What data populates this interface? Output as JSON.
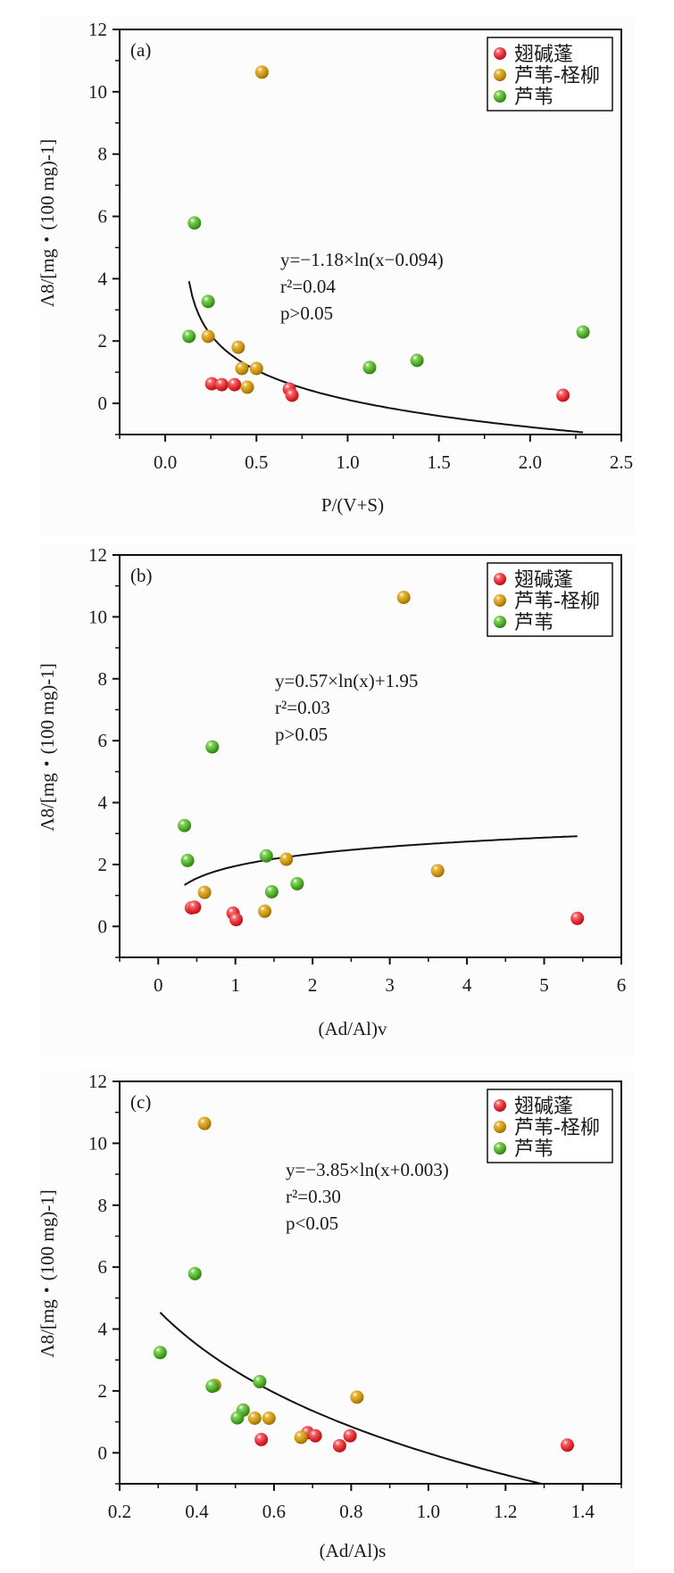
{
  "legend": [
    {
      "name": "翅碱蓬",
      "color": "#e0262e"
    },
    {
      "name": "芦苇-柽柳",
      "color": "#c8920c"
    },
    {
      "name": "芦苇",
      "color": "#4caa25"
    }
  ],
  "chart_data": [
    {
      "type": "scatter",
      "panel_label": "(a)",
      "xlabel": "P/(V+S)",
      "ylabel": "Λ8/[mg・(100 mg)-1]",
      "xlim": [
        -0.25,
        2.5
      ],
      "ylim": [
        -1,
        12
      ],
      "xticks": [
        "0.0",
        "0.5",
        "1.0",
        "1.5",
        "2.0",
        "2.5"
      ],
      "xtick_values": [
        0,
        0.5,
        1.0,
        1.5,
        2.0,
        2.5
      ],
      "yticks": [
        "0",
        "2",
        "4",
        "6",
        "8",
        "10",
        "12"
      ],
      "ytick_values": [
        0,
        2,
        4,
        6,
        8,
        10,
        12
      ],
      "legend_position": "top-right",
      "series": [
        {
          "name": "翅碱蓬",
          "points": [
            [
              0.255,
              0.63
            ],
            [
              0.31,
              0.6
            ],
            [
              0.38,
              0.6
            ],
            [
              0.68,
              0.46
            ],
            [
              0.695,
              0.26
            ],
            [
              2.18,
              0.26
            ]
          ]
        },
        {
          "name": "芦苇-柽柳",
          "points": [
            [
              0.53,
              10.63
            ],
            [
              0.235,
              2.15
            ],
            [
              0.4,
              1.8
            ],
            [
              0.42,
              1.12
            ],
            [
              0.5,
              1.12
            ],
            [
              0.45,
              0.52
            ]
          ]
        },
        {
          "name": "芦苇",
          "points": [
            [
              0.16,
              5.79
            ],
            [
              0.235,
              3.27
            ],
            [
              0.13,
              2.15
            ],
            [
              1.12,
              1.15
            ],
            [
              1.38,
              1.38
            ],
            [
              2.29,
              2.29
            ]
          ]
        }
      ],
      "fit": {
        "a": -1.18,
        "b": 0,
        "shift": -0.094,
        "x_range": [
          0.13,
          2.29
        ]
      },
      "equation_lines": [
        "y=−1.18×ln(x−0.094)",
        "r²=0.04",
        "p>0.05"
      ]
    },
    {
      "type": "scatter",
      "panel_label": "(b)",
      "xlabel": "(Ad/Al)v",
      "ylabel": "Λ8/[mg・(100 mg)-1]",
      "xlim": [
        -0.5,
        6
      ],
      "ylim": [
        -1,
        12
      ],
      "xticks": [
        "0",
        "1",
        "2",
        "3",
        "4",
        "5",
        "6"
      ],
      "xtick_values": [
        0,
        1,
        2,
        3,
        4,
        5,
        6
      ],
      "yticks": [
        "0",
        "2",
        "4",
        "6",
        "8",
        "10",
        "12"
      ],
      "ytick_values": [
        0,
        2,
        4,
        6,
        8,
        10,
        12
      ],
      "legend_position": "top-right",
      "series": [
        {
          "name": "翅碱蓬",
          "points": [
            [
              0.43,
              0.6
            ],
            [
              0.47,
              0.62
            ],
            [
              0.97,
              0.43
            ],
            [
              1.01,
              0.22
            ],
            [
              5.43,
              0.26
            ]
          ]
        },
        {
          "name": "芦苇-柽柳",
          "points": [
            [
              3.18,
              10.63
            ],
            [
              0.6,
              1.1
            ],
            [
              1.38,
              0.49
            ],
            [
              1.66,
              2.17
            ],
            [
              3.62,
              1.8
            ]
          ]
        },
        {
          "name": "芦苇",
          "points": [
            [
              0.7,
              5.8
            ],
            [
              0.34,
              3.26
            ],
            [
              0.38,
              2.13
            ],
            [
              1.4,
              2.28
            ],
            [
              1.47,
              1.12
            ],
            [
              1.8,
              1.38
            ]
          ]
        }
      ],
      "fit": {
        "a": 0.57,
        "b": 1.95,
        "shift": 0,
        "x_range": [
          0.34,
          5.43
        ]
      },
      "equation_lines": [
        "y=0.57×ln(x)+1.95",
        "r²=0.03",
        "p>0.05"
      ]
    },
    {
      "type": "scatter",
      "panel_label": "(c)",
      "xlabel": "(Ad/Al)s",
      "ylabel": "Λ8/[mg・(100 mg)-1]",
      "xlim": [
        0.2,
        1.5
      ],
      "ylim": [
        -1,
        12
      ],
      "xticks": [
        "0.2",
        "0.4",
        "0.6",
        "0.8",
        "1.0",
        "1.2",
        "1.4"
      ],
      "xtick_values": [
        0.2,
        0.4,
        0.6,
        0.8,
        1.0,
        1.2,
        1.4
      ],
      "yticks": [
        "0",
        "2",
        "4",
        "6",
        "8",
        "10",
        "12"
      ],
      "ytick_values": [
        0,
        2,
        4,
        6,
        8,
        10,
        12
      ],
      "legend_position": "top-right",
      "series": [
        {
          "name": "翅碱蓬",
          "points": [
            [
              0.567,
              0.43
            ],
            [
              0.687,
              0.65
            ],
            [
              0.707,
              0.55
            ],
            [
              0.77,
              0.23
            ],
            [
              0.797,
              0.55
            ],
            [
              1.36,
              0.25
            ]
          ]
        },
        {
          "name": "芦苇-柽柳",
          "points": [
            [
              0.42,
              10.64
            ],
            [
              0.446,
              2.18
            ],
            [
              0.55,
              1.12
            ],
            [
              0.587,
              1.12
            ],
            [
              0.67,
              0.5
            ],
            [
              0.815,
              1.8
            ]
          ]
        },
        {
          "name": "芦苇",
          "points": [
            [
              0.395,
              5.79
            ],
            [
              0.305,
              3.24
            ],
            [
              0.44,
              2.15
            ],
            [
              0.563,
              2.3
            ],
            [
              0.52,
              1.38
            ],
            [
              0.505,
              1.13
            ]
          ]
        }
      ],
      "fit": {
        "a": -3.85,
        "b": 0,
        "shift": 0.003,
        "x_range": [
          0.305,
          1.295
        ]
      },
      "equation_lines": [
        "y=−3.85×ln(x+0.003)",
        "r²=0.30",
        "p<0.05"
      ]
    }
  ]
}
